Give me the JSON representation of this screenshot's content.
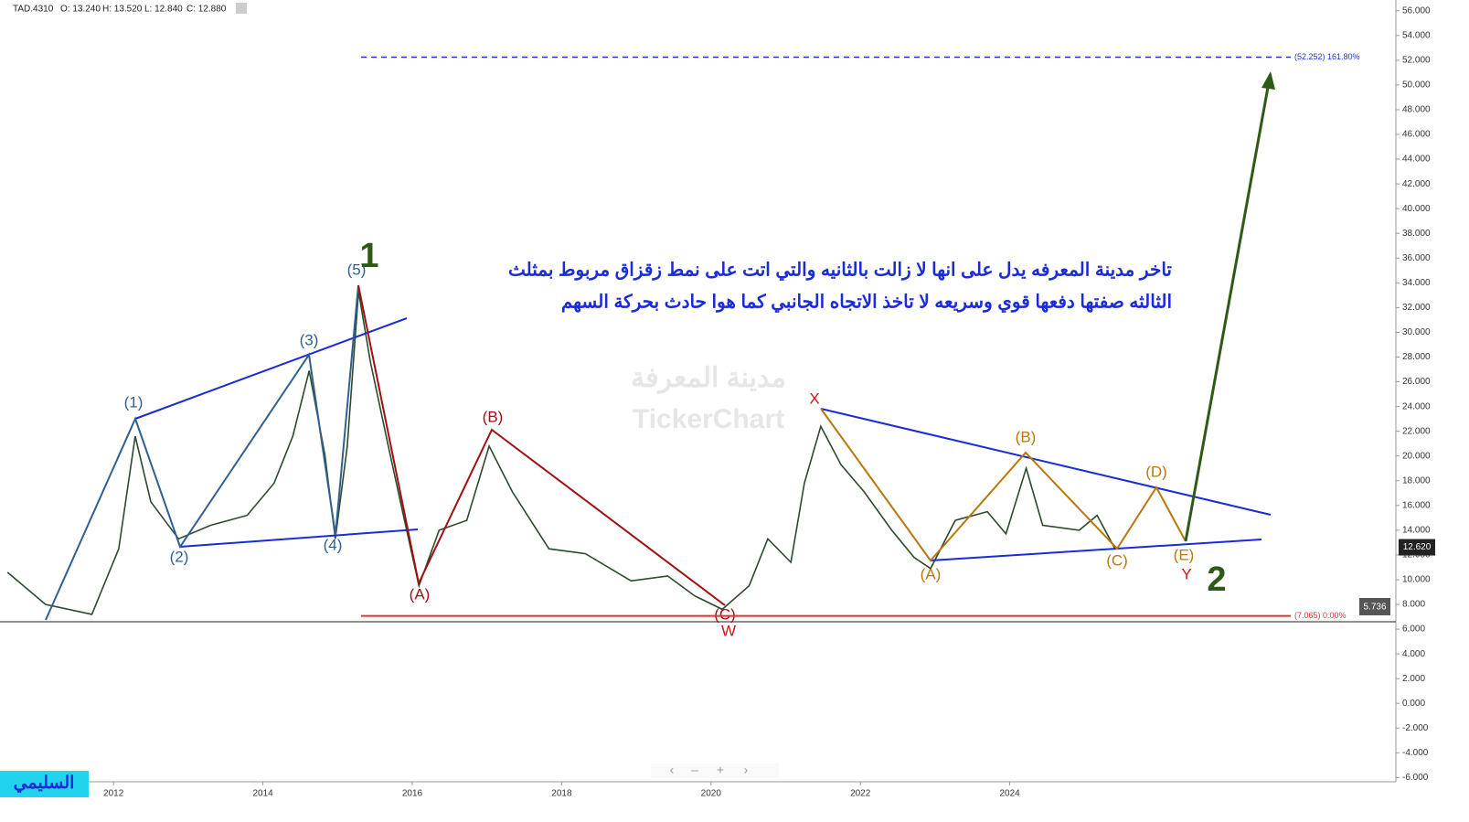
{
  "chart_data": {
    "type": "line",
    "header": [
      "TAD.4310",
      "O: 13.240",
      "H: 13.520",
      "L: 12.840",
      "C: 12.880"
    ],
    "x": [
      2010.58,
      2011.09,
      2011.71,
      2012.07,
      2012.29,
      2012.5,
      2012.87,
      2013.3,
      2013.79,
      2014.15,
      2014.4,
      2014.62,
      2014.83,
      2014.97,
      2015.13,
      2015.28,
      2015.44,
      2015.68,
      2015.87,
      2016.09,
      2016.36,
      2016.73,
      2017.03,
      2017.34,
      2017.83,
      2018.32,
      2018.93,
      2019.42,
      2019.78,
      2020.15,
      2020.51,
      2020.76,
      2021.07,
      2021.25,
      2021.47,
      2021.74,
      2022.05,
      2022.42,
      2022.72,
      2022.94,
      2023.27,
      2023.7,
      2023.95,
      2024.22,
      2024.44,
      2024.93,
      2025.17,
      2025.41
    ],
    "series": [
      {
        "name": "TAD.4310",
        "color": "#2c4a2c",
        "values": [
          10.6,
          8.0,
          7.2,
          12.5,
          21.6,
          16.3,
          13.3,
          14.4,
          15.2,
          17.8,
          21.6,
          26.9,
          20.1,
          13.3,
          20.8,
          33.3,
          27.6,
          20.8,
          15.5,
          9.5,
          14.0,
          14.8,
          20.8,
          17.1,
          12.5,
          12.1,
          9.9,
          10.3,
          8.7,
          7.6,
          9.5,
          13.3,
          11.4,
          17.8,
          22.4,
          19.3,
          17.1,
          14.0,
          11.8,
          10.9,
          14.8,
          15.5,
          13.7,
          19.0,
          14.4,
          14.0,
          15.2,
          12.5
        ]
      }
    ],
    "xlim": [
      2010.48,
      2029.17
    ],
    "xticks": [
      2012,
      2014,
      2016,
      2018,
      2020,
      2022,
      2024
    ],
    "ylim": [
      -6.34,
      56.87
    ],
    "yticks": [
      {
        "value": 56,
        "label": "56.000"
      },
      {
        "value": 54,
        "label": "54.000"
      },
      {
        "value": 52,
        "label": "52.000"
      },
      {
        "value": 50,
        "label": "50.000"
      },
      {
        "value": 48,
        "label": "48.000"
      },
      {
        "value": 46,
        "label": "46.000"
      },
      {
        "value": 44,
        "label": "44.000"
      },
      {
        "value": 42,
        "label": "42.000"
      },
      {
        "value": 40,
        "label": "40.000"
      },
      {
        "value": 38,
        "label": "38.000"
      },
      {
        "value": 36,
        "label": "36.000"
      },
      {
        "value": 34,
        "label": "34.000"
      },
      {
        "value": 32,
        "label": "32.000"
      },
      {
        "value": 30,
        "label": "30.000"
      },
      {
        "value": 28,
        "label": "28.000"
      },
      {
        "value": 26,
        "label": "26.000"
      },
      {
        "value": 24,
        "label": "24.000"
      },
      {
        "value": 22,
        "label": "22.000"
      },
      {
        "value": 20,
        "label": "20.000"
      },
      {
        "value": 18,
        "label": "18.000"
      },
      {
        "value": 16,
        "label": "16.000"
      },
      {
        "value": 14,
        "label": "14.000"
      },
      {
        "value": 12,
        "label": "12.000"
      },
      {
        "value": 10,
        "label": "10.000"
      },
      {
        "value": 8,
        "label": "8.000"
      },
      {
        "value": 6,
        "label": "6.000"
      },
      {
        "value": 4,
        "label": "4.000"
      },
      {
        "value": 2,
        "label": "2.000"
      },
      {
        "value": 0,
        "label": "0.000"
      },
      {
        "value": -2,
        "label": "-2.000"
      },
      {
        "value": -4,
        "label": "-4.000"
      },
      {
        "value": -6,
        "label": "-6.000"
      }
    ],
    "fib_levels": [
      {
        "value": 52.252,
        "label": "(52.252) 161.80%",
        "color": "#2233cc"
      },
      {
        "value": 7.065,
        "label": "(7.065) 0.00%",
        "color": "#e03030"
      }
    ],
    "last_price": {
      "value": 12.62,
      "label": "12.620"
    },
    "fib_tag": "5.736",
    "annotations": [
      "(1)",
      "(2)",
      "(3)",
      "(4)",
      "(5)",
      "1",
      "(A)",
      "(B)",
      "(C)",
      "W",
      "X",
      "(A)",
      "(B)",
      "(C)",
      "(D)",
      "(E)",
      "Y",
      "2"
    ],
    "notes": [
      "تاخر مدينة المعرفه يدل على انها لا زالت بالثانيه والتي اتت على نمط زقزاق مربوط بمثلث",
      "الثالثه صفتها دفعها قوي وسريعه لا تاخذ الاتجاه الجانبي كما هوا حادث بحركة السهم"
    ],
    "watermark": [
      "مدينة المعرفة",
      "TickerChart"
    ],
    "author": "السليمي"
  }
}
